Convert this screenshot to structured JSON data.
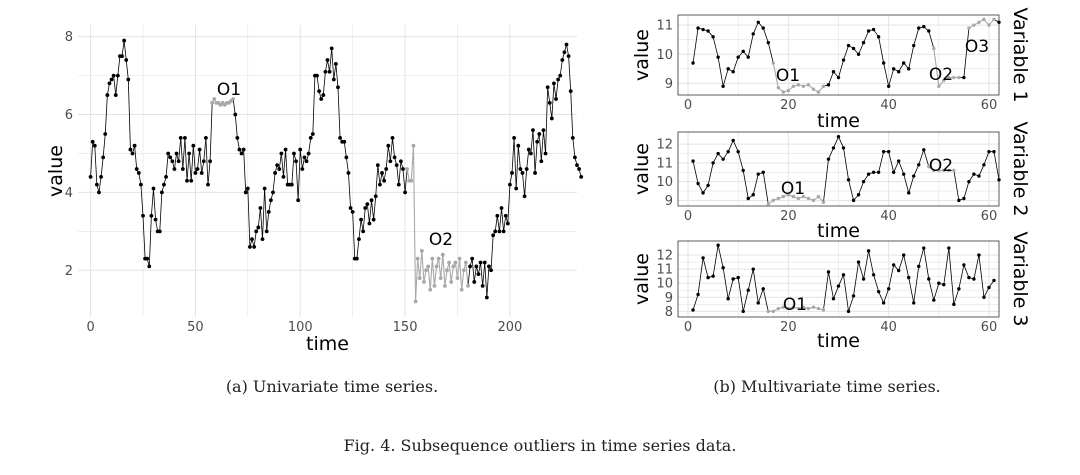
{
  "figure_caption": "Fig. 4.  Subsequence outliers in time series data.",
  "colors": {
    "normal": "#000000",
    "outlier": "#a8a8a8",
    "grid": "#e3e3e3",
    "panel_border": "#333333"
  },
  "chart_data": [
    {
      "type": "line",
      "caption": "(a) Univariate time series.",
      "xlabel": "time",
      "ylabel": "value",
      "xlim": [
        -6,
        232
      ],
      "ylim": [
        0.8,
        8.3
      ],
      "xticks": [
        0,
        50,
        100,
        150,
        200
      ],
      "yticks": [
        2,
        4,
        6,
        8
      ],
      "grid": true,
      "x_start": 0,
      "values": [
        4.4,
        5.3,
        5.2,
        4.2,
        4.0,
        4.4,
        4.9,
        5.5,
        6.5,
        6.8,
        6.9,
        7.0,
        6.5,
        7.0,
        7.5,
        7.5,
        7.9,
        7.4,
        6.9,
        5.1,
        5.0,
        5.2,
        4.6,
        4.5,
        4.2,
        3.4,
        2.3,
        2.3,
        2.1,
        3.4,
        4.1,
        3.3,
        3.0,
        3.0,
        4.0,
        4.2,
        4.4,
        5.0,
        4.9,
        4.8,
        4.6,
        5.0,
        4.8,
        5.4,
        4.6,
        5.4,
        4.3,
        5.0,
        4.3,
        5.2,
        4.5,
        4.6,
        5.1,
        4.5,
        4.8,
        5.4,
        4.2,
        4.8,
        6.3,
        6.4,
        6.3,
        6.3,
        6.25,
        6.3,
        6.25,
        6.3,
        6.3,
        6.35,
        6.4,
        6.0,
        5.4,
        5.1,
        5.0,
        5.1,
        4.0,
        4.1,
        2.6,
        2.8,
        2.6,
        3.0,
        3.1,
        3.6,
        2.8,
        4.1,
        3.0,
        3.5,
        3.8,
        4.0,
        4.5,
        4.7,
        4.6,
        5.0,
        4.4,
        5.1,
        4.2,
        4.2,
        4.2,
        5.0,
        4.8,
        3.8,
        5.1,
        4.6,
        4.9,
        4.8,
        5.0,
        5.4,
        5.5,
        7.0,
        7.0,
        6.6,
        6.4,
        6.5,
        7.1,
        7.4,
        7.1,
        7.7,
        6.9,
        7.3,
        6.7,
        5.4,
        5.3,
        5.3,
        4.9,
        4.5,
        3.6,
        3.5,
        2.3,
        2.3,
        2.8,
        3.3,
        3.0,
        3.6,
        3.7,
        3.2,
        3.8,
        3.3,
        3.9,
        4.7,
        4.2,
        4.5,
        4.3,
        4.6,
        5.2,
        4.8,
        5.4,
        4.9,
        4.7,
        4.2,
        4.8,
        4.6,
        4.0,
        4.6,
        4.3,
        4.3,
        5.2,
        1.2,
        2.3,
        1.8,
        2.5,
        1.7,
        2.0,
        2.1,
        1.5,
        2.3,
        1.6,
        2.1,
        2.3,
        1.8,
        2.4,
        1.6,
        2.0,
        2.2,
        1.7,
        2.1,
        2.2,
        1.8,
        2.3,
        1.5,
        2.0,
        2.2,
        1.6,
        2.1,
        2.3,
        1.7,
        2.1,
        1.9,
        2.2,
        1.6,
        2.2,
        1.3,
        2.1,
        2.0,
        2.9,
        3.0,
        3.4,
        3.0,
        3.6,
        3.0,
        3.4,
        3.2,
        4.2,
        4.5,
        5.4,
        4.1,
        5.2,
        4.6,
        4.5,
        3.9,
        4.6,
        5.1,
        5.0,
        5.6,
        4.5,
        5.3,
        5.5,
        4.8,
        5.6,
        5.0,
        6.7,
        6.3,
        5.9,
        6.8,
        6.4,
        6.9,
        7.0,
        7.4,
        7.6,
        7.8,
        7.5,
        6.6,
        5.4,
        4.9,
        4.7,
        4.6,
        4.4
      ],
      "outlier_segments": [
        {
          "label": "O1",
          "start": 58,
          "end": 68
        },
        {
          "label": "O2",
          "start": 151,
          "end": 180
        }
      ]
    },
    {
      "type": "line",
      "caption": "(b) Multivariate time series.",
      "panel": "Variable 1",
      "xlabel": "time",
      "ylabel": "value",
      "xlim": [
        -2,
        62
      ],
      "ylim": [
        8.6,
        11.35
      ],
      "xticks": [
        0,
        20,
        40,
        60
      ],
      "yticks": [
        9,
        10,
        11
      ],
      "grid": true,
      "x_start": 1,
      "values": [
        9.7,
        10.9,
        10.85,
        10.8,
        10.6,
        9.9,
        8.9,
        9.5,
        9.4,
        9.9,
        10.1,
        9.9,
        10.7,
        11.1,
        10.9,
        10.4,
        9.7,
        8.85,
        8.7,
        8.75,
        8.9,
        8.95,
        8.9,
        8.95,
        8.8,
        8.7,
        8.9,
        8.95,
        9.4,
        9.2,
        9.8,
        10.3,
        10.2,
        10.0,
        10.4,
        10.8,
        10.85,
        10.6,
        9.7,
        8.9,
        9.5,
        9.4,
        9.7,
        9.5,
        10.3,
        10.9,
        10.95,
        10.8,
        10.2,
        8.9,
        9.1,
        9.2,
        9.2,
        9.2,
        9.2,
        10.9,
        11.0,
        11.1,
        11.2,
        11.0,
        11.2,
        11.1
      ],
      "outlier_segments": [
        {
          "label": "O1",
          "start": 17,
          "end": 27
        },
        {
          "label": "O2",
          "start": 49,
          "end": 54
        },
        {
          "label": "O3",
          "start": 56,
          "end": 61
        }
      ]
    },
    {
      "type": "line",
      "panel": "Variable 2",
      "xlabel": "time",
      "ylabel": "value",
      "xlim": [
        -2,
        62
      ],
      "ylim": [
        8.7,
        12.65
      ],
      "xticks": [
        0,
        20,
        40,
        60
      ],
      "yticks": [
        9,
        10,
        11,
        12
      ],
      "grid": true,
      "x_start": 1,
      "values": [
        11.1,
        9.9,
        9.4,
        9.8,
        11.0,
        11.5,
        11.2,
        11.6,
        12.2,
        11.6,
        10.6,
        9.1,
        9.3,
        10.4,
        10.5,
        8.8,
        9.0,
        9.1,
        9.2,
        9.3,
        9.2,
        9.1,
        9.2,
        9.1,
        9.0,
        9.2,
        8.9,
        11.2,
        11.8,
        12.4,
        11.8,
        10.1,
        9.0,
        9.3,
        10.0,
        10.4,
        10.5,
        10.5,
        11.6,
        11.6,
        10.5,
        11.1,
        10.4,
        9.4,
        10.3,
        10.9,
        11.7,
        10.8,
        10.6,
        10.6,
        10.6,
        10.6,
        10.6,
        9.0,
        9.1,
        10.0,
        10.4,
        10.3,
        10.9,
        11.6,
        11.6,
        10.1
      ],
      "outlier_segments": [
        {
          "label": "O1",
          "start": 16,
          "end": 27
        },
        {
          "label": "O2",
          "start": 48,
          "end": 53
        }
      ]
    },
    {
      "type": "line",
      "panel": "Variable 3",
      "xlabel": "time",
      "ylabel": "value",
      "xlim": [
        -2,
        62
      ],
      "ylim": [
        7.6,
        13.0
      ],
      "xticks": [
        0,
        20,
        40,
        60
      ],
      "yticks": [
        8,
        9,
        10,
        11,
        12
      ],
      "grid": true,
      "x_start": 1,
      "values": [
        8.1,
        9.2,
        11.8,
        10.4,
        10.5,
        12.7,
        11.1,
        8.9,
        10.3,
        10.4,
        8.0,
        9.5,
        11.0,
        8.6,
        9.6,
        8.0,
        8.0,
        8.2,
        8.3,
        8.2,
        8.3,
        8.2,
        8.3,
        8.2,
        8.3,
        8.2,
        8.1,
        10.8,
        8.9,
        9.8,
        10.6,
        8.0,
        9.1,
        11.5,
        10.3,
        12.3,
        10.6,
        9.4,
        8.6,
        9.6,
        11.3,
        10.9,
        12.0,
        10.4,
        8.6,
        11.2,
        12.5,
        10.3,
        8.8,
        10.0,
        9.9,
        12.5,
        8.5,
        9.6,
        11.3,
        10.4,
        10.3,
        12.0,
        9.0,
        9.7,
        10.2
      ],
      "outlier_segments": [
        {
          "label": "O1",
          "start": 16,
          "end": 27
        }
      ]
    }
  ]
}
